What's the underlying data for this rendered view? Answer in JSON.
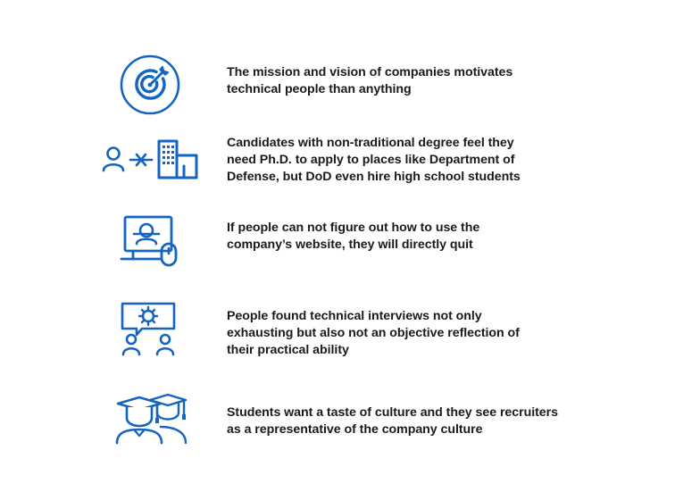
{
  "colors": {
    "icon_blue": "#1565c0",
    "text": "#1a1a1a",
    "background": "#ffffff"
  },
  "items": [
    {
      "icon": "target-icon",
      "lines": [
        "The mission and vision of companies motivates",
        "technical people than anything"
      ]
    },
    {
      "icon": "candidate-building-icon",
      "lines": [
        "Candidates with non-traditional degree feel they",
        "need Ph.D. to apply to places like Department of",
        "Defense, but DoD even hire high school students"
      ]
    },
    {
      "icon": "website-monitor-mouse-icon",
      "lines": [
        "If people can not figure out how to use the",
        "company’s website, they will directly quit"
      ]
    },
    {
      "icon": "interview-chat-icon",
      "lines": [
        "People found technical interviews not only",
        "exhausting but also not an objective reflection of",
        "their practical ability"
      ]
    },
    {
      "icon": "graduates-icon",
      "lines": [
        "Students want a taste of culture and they see recruiters",
        "as a representative of the company culture"
      ]
    }
  ]
}
